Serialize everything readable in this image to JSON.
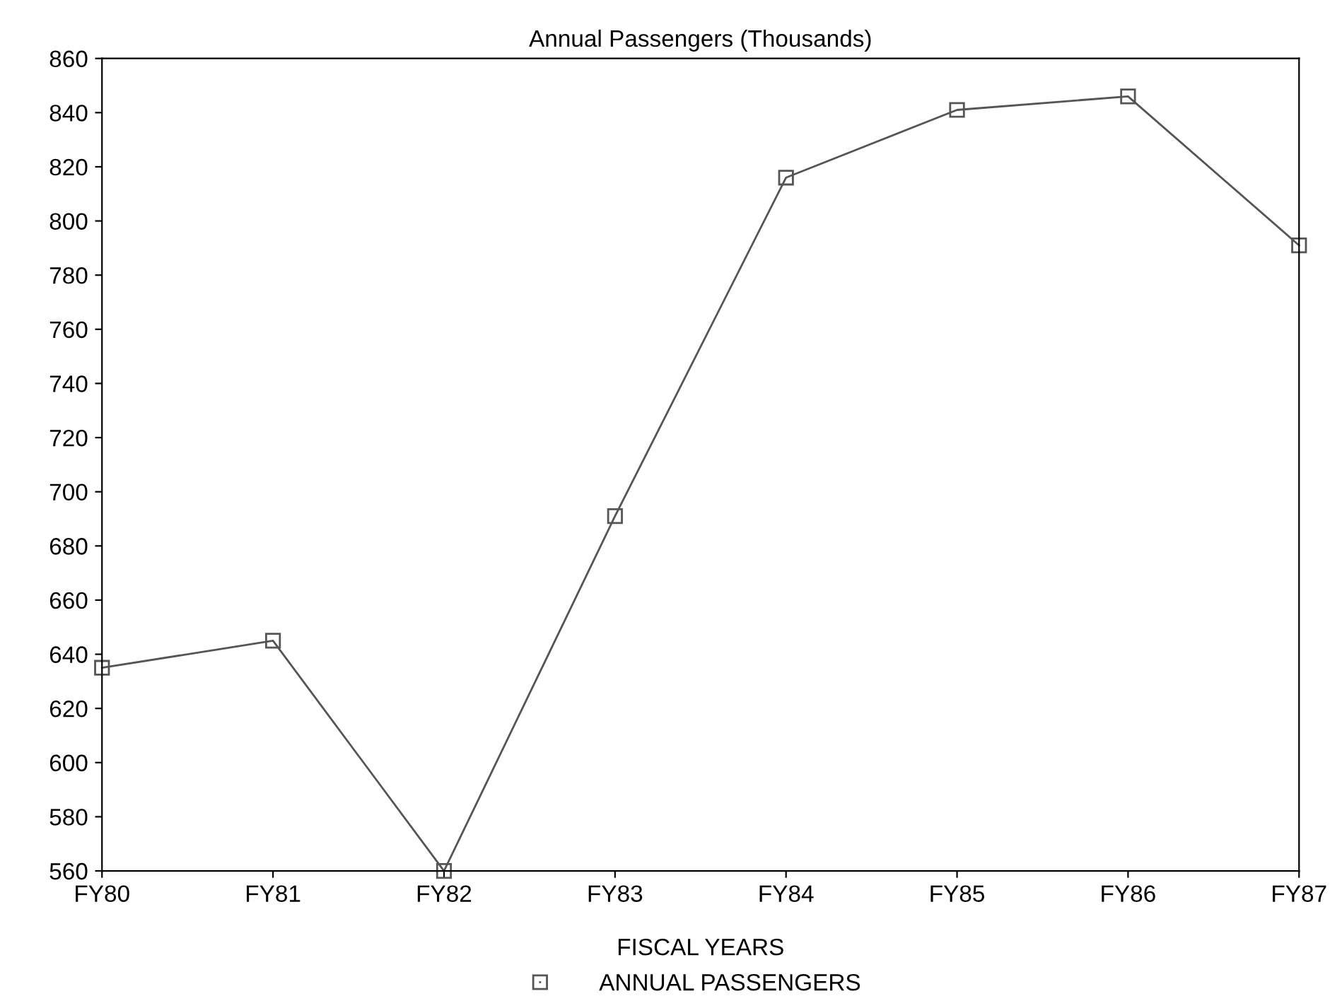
{
  "chart_data": {
    "type": "line",
    "title": "Annual Passengers (Thousands)",
    "xlabel": "FISCAL YEARS",
    "categories": [
      "FY80",
      "FY81",
      "FY82",
      "FY83",
      "FY84",
      "FY85",
      "FY86",
      "FY87"
    ],
    "series": [
      {
        "name": "ANNUAL PASSENGERS",
        "color": "#555555",
        "values": [
          635,
          645,
          560,
          691,
          816,
          841,
          846,
          791
        ]
      }
    ],
    "ylim": [
      560,
      860
    ],
    "yticks": [
      560,
      580,
      600,
      620,
      640,
      660,
      680,
      700,
      720,
      740,
      760,
      780,
      800,
      820,
      840,
      860
    ],
    "marker": "square",
    "line_style": "solid",
    "grid": false,
    "legend": "bottom"
  }
}
